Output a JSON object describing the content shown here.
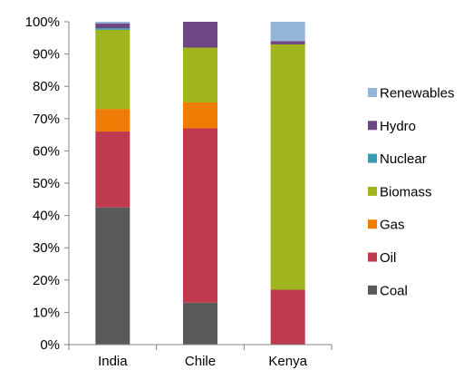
{
  "chart_data": {
    "type": "bar",
    "stacked": true,
    "normalized_percent": true,
    "categories": [
      "India",
      "Chile",
      "Kenya"
    ],
    "series": [
      {
        "name": "Coal",
        "color": "#595959",
        "values": [
          42.5,
          13.0,
          0.0
        ]
      },
      {
        "name": "Oil",
        "color": "#bf3a4f",
        "values": [
          23.5,
          54.0,
          17.0
        ]
      },
      {
        "name": "Gas",
        "color": "#ef7d05",
        "values": [
          7.0,
          8.0,
          0.0
        ]
      },
      {
        "name": "Biomass",
        "color": "#a0b41e",
        "values": [
          24.5,
          17.0,
          76.0
        ]
      },
      {
        "name": "Nuclear",
        "color": "#3a9ab0",
        "values": [
          0.5,
          0.0,
          0.0
        ]
      },
      {
        "name": "Hydro",
        "color": "#6d4683",
        "values": [
          1.5,
          8.0,
          1.0
        ]
      },
      {
        "name": "Renewables",
        "color": "#94b4d8",
        "values": [
          0.5,
          0.0,
          6.0
        ]
      }
    ],
    "ylim": [
      0,
      100
    ],
    "yticks": [
      "0%",
      "10%",
      "20%",
      "30%",
      "40%",
      "50%",
      "60%",
      "70%",
      "80%",
      "90%",
      "100%"
    ],
    "grid": false,
    "legend_position": "right",
    "legend_order": [
      "Renewables",
      "Hydro",
      "Nuclear",
      "Biomass",
      "Gas",
      "Oil",
      "Coal"
    ],
    "title": "",
    "xlabel": "",
    "ylabel": ""
  }
}
